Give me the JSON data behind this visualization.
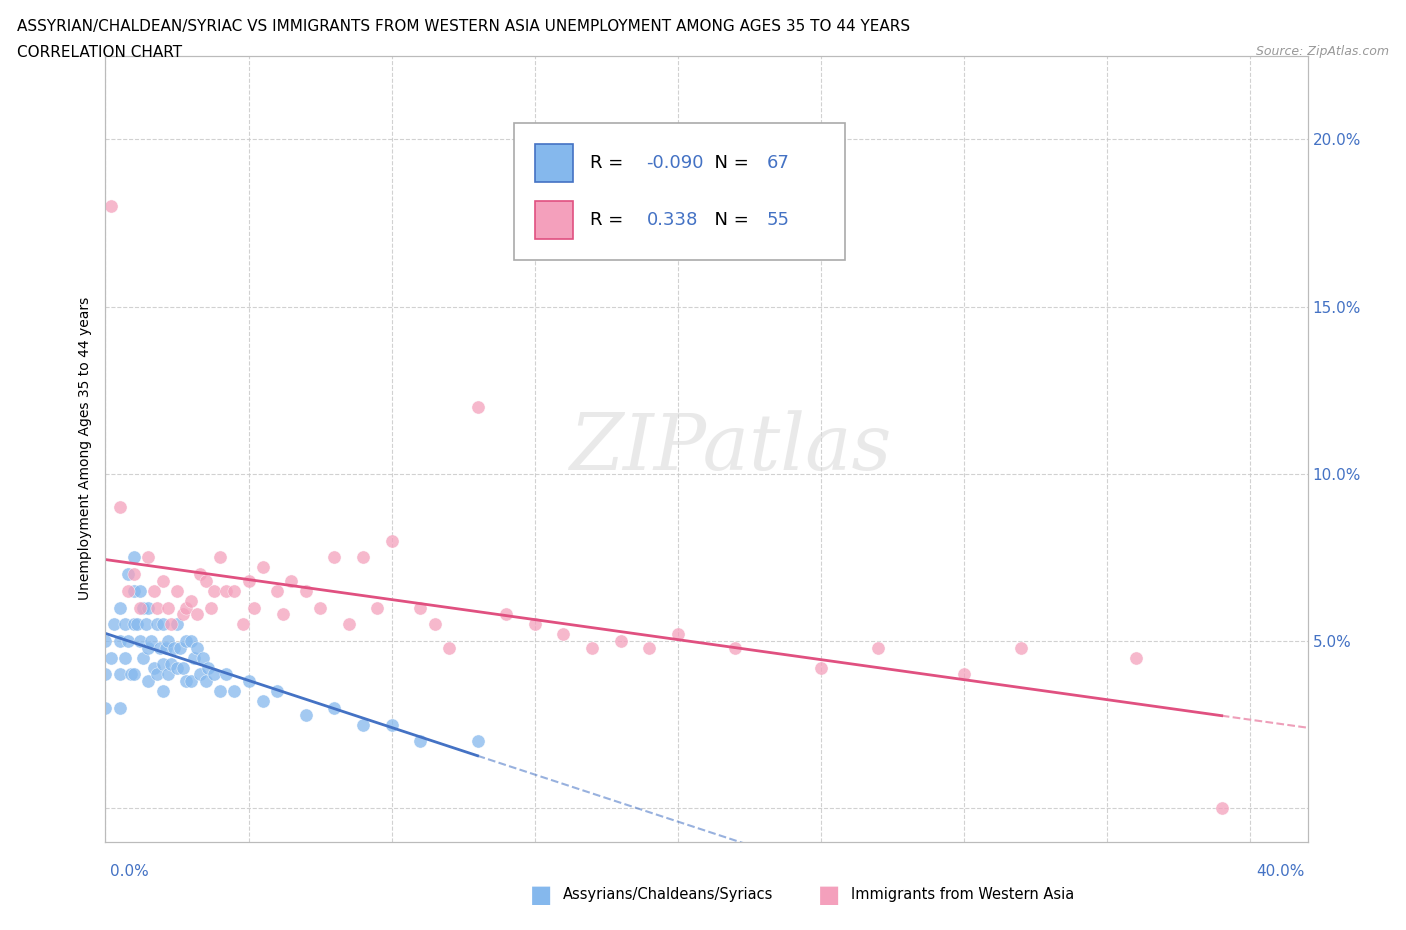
{
  "title_line1": "ASSYRIAN/CHALDEAN/SYRIAC VS IMMIGRANTS FROM WESTERN ASIA UNEMPLOYMENT AMONG AGES 35 TO 44 YEARS",
  "title_line2": "CORRELATION CHART",
  "source_text": "Source: ZipAtlas.com",
  "ylabel": "Unemployment Among Ages 35 to 44 years",
  "xlim": [
    0.0,
    0.42
  ],
  "ylim": [
    -0.01,
    0.225
  ],
  "xticks": [
    0.0,
    0.05,
    0.1,
    0.15,
    0.2,
    0.25,
    0.3,
    0.35,
    0.4
  ],
  "yticks": [
    0.0,
    0.05,
    0.1,
    0.15,
    0.2
  ],
  "color_assyrian": "#85B8ED",
  "color_western": "#F4A0BC",
  "color_line_assyrian": "#4472C4",
  "color_line_western": "#E05080",
  "R_assyrian": -0.09,
  "N_assyrian": 67,
  "R_western": 0.338,
  "N_western": 55,
  "background_color": "#FFFFFF",
  "grid_color": "#CCCCCC",
  "assyrian_scatter_x": [
    0.0,
    0.0,
    0.0,
    0.002,
    0.003,
    0.005,
    0.005,
    0.005,
    0.005,
    0.007,
    0.007,
    0.008,
    0.008,
    0.009,
    0.01,
    0.01,
    0.01,
    0.01,
    0.011,
    0.012,
    0.012,
    0.013,
    0.013,
    0.014,
    0.015,
    0.015,
    0.015,
    0.016,
    0.017,
    0.018,
    0.018,
    0.019,
    0.02,
    0.02,
    0.02,
    0.021,
    0.022,
    0.022,
    0.023,
    0.024,
    0.025,
    0.025,
    0.026,
    0.027,
    0.028,
    0.028,
    0.03,
    0.03,
    0.031,
    0.032,
    0.033,
    0.034,
    0.035,
    0.036,
    0.038,
    0.04,
    0.042,
    0.045,
    0.05,
    0.055,
    0.06,
    0.07,
    0.08,
    0.09,
    0.1,
    0.11,
    0.13
  ],
  "assyrian_scatter_y": [
    0.05,
    0.04,
    0.03,
    0.045,
    0.055,
    0.06,
    0.05,
    0.04,
    0.03,
    0.055,
    0.045,
    0.07,
    0.05,
    0.04,
    0.075,
    0.065,
    0.055,
    0.04,
    0.055,
    0.065,
    0.05,
    0.06,
    0.045,
    0.055,
    0.06,
    0.048,
    0.038,
    0.05,
    0.042,
    0.055,
    0.04,
    0.048,
    0.055,
    0.043,
    0.035,
    0.048,
    0.05,
    0.04,
    0.043,
    0.048,
    0.055,
    0.042,
    0.048,
    0.042,
    0.05,
    0.038,
    0.05,
    0.038,
    0.045,
    0.048,
    0.04,
    0.045,
    0.038,
    0.042,
    0.04,
    0.035,
    0.04,
    0.035,
    0.038,
    0.032,
    0.035,
    0.028,
    0.03,
    0.025,
    0.025,
    0.02,
    0.02
  ],
  "western_scatter_x": [
    0.002,
    0.005,
    0.008,
    0.01,
    0.012,
    0.015,
    0.017,
    0.018,
    0.02,
    0.022,
    0.023,
    0.025,
    0.027,
    0.028,
    0.03,
    0.032,
    0.033,
    0.035,
    0.037,
    0.038,
    0.04,
    0.042,
    0.045,
    0.048,
    0.05,
    0.052,
    0.055,
    0.06,
    0.062,
    0.065,
    0.07,
    0.075,
    0.08,
    0.085,
    0.09,
    0.095,
    0.1,
    0.11,
    0.115,
    0.12,
    0.13,
    0.14,
    0.15,
    0.16,
    0.17,
    0.18,
    0.19,
    0.2,
    0.22,
    0.25,
    0.27,
    0.3,
    0.32,
    0.36,
    0.39
  ],
  "western_scatter_y": [
    0.18,
    0.09,
    0.065,
    0.07,
    0.06,
    0.075,
    0.065,
    0.06,
    0.068,
    0.06,
    0.055,
    0.065,
    0.058,
    0.06,
    0.062,
    0.058,
    0.07,
    0.068,
    0.06,
    0.065,
    0.075,
    0.065,
    0.065,
    0.055,
    0.068,
    0.06,
    0.072,
    0.065,
    0.058,
    0.068,
    0.065,
    0.06,
    0.075,
    0.055,
    0.075,
    0.06,
    0.08,
    0.06,
    0.055,
    0.048,
    0.12,
    0.058,
    0.055,
    0.052,
    0.048,
    0.05,
    0.048,
    0.052,
    0.048,
    0.042,
    0.048,
    0.04,
    0.048,
    0.045,
    0.0
  ]
}
